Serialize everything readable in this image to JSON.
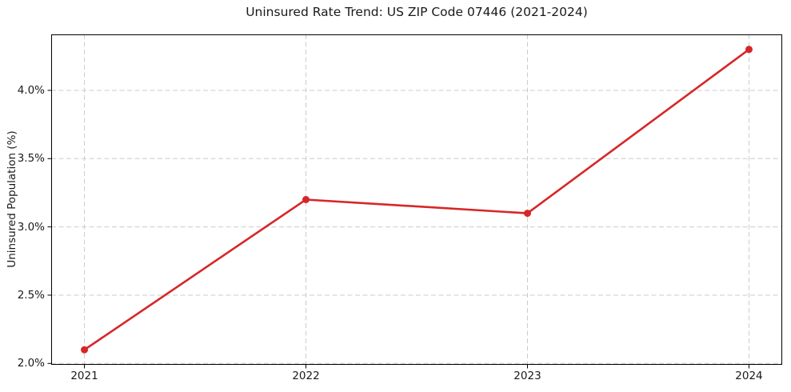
{
  "chart_data": {
    "type": "line",
    "title": "Uninsured Rate Trend: US ZIP Code 07446 (2021-2024)",
    "xlabel": "",
    "ylabel": "Uninsured Population (%)",
    "x": [
      2021,
      2022,
      2023,
      2024
    ],
    "values": [
      2.1,
      3.2,
      3.1,
      4.3
    ],
    "xticks": {
      "values": [
        2021,
        2022,
        2023,
        2024
      ],
      "labels": [
        "2021",
        "2022",
        "2023",
        "2024"
      ]
    },
    "yticks": {
      "values": [
        2.0,
        2.5,
        3.0,
        3.5,
        4.0
      ],
      "labels": [
        "2.0%",
        "2.5%",
        "3.0%",
        "3.5%",
        "4.0%"
      ]
    },
    "xlim": [
      2020.85,
      2024.15
    ],
    "ylim": [
      1.99,
      4.41
    ],
    "grid": true,
    "grid_style": "dashed",
    "legend": false,
    "marker": "circle",
    "line_color": "#d62728",
    "grid_color": "#cccccc",
    "spine_color": "#000000",
    "text_color": "#1a1a1a"
  }
}
